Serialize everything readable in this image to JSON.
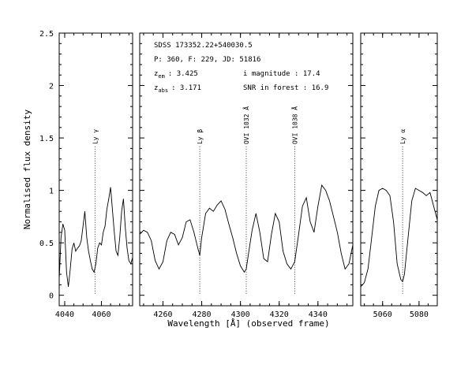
{
  "chart_data": {
    "type": "line",
    "xlabel": "Wavelength [Å] (observed frame)",
    "ylabel": "Normalised flux density",
    "ylim": [
      -0.1,
      2.5
    ],
    "y_ticks": [
      "0",
      "0.5",
      "1",
      "1.5",
      "2",
      "2.5"
    ],
    "annotations": {
      "object": "SDSS 173352.22+540030.5",
      "plate": "P: 360, F: 229, JD: 51816",
      "zem_main": "z",
      "zem_sub": "em",
      "zem_value": ": 3.425",
      "zabs_main": "z",
      "zabs_sub": "abs",
      "zabs_value": ": 3.171",
      "imag": "i magnitude : 17.4",
      "snr": "SNR in forest : 16.9"
    },
    "panels": [
      {
        "xlim": [
          4037,
          4077
        ],
        "x_ticks": [
          "4040",
          "4060"
        ],
        "line_label": "Ly γ",
        "line_wavelength": 4056.5,
        "series": [
          {
            "x": [
              4037,
              4038,
              4039,
              4040,
              4041,
              4042,
              4043,
              4044,
              4045,
              4046,
              4047,
              4048,
              4049,
              4050,
              4051,
              4052,
              4053,
              4054,
              4055,
              4056,
              4057,
              4058,
              4059,
              4060,
              4061,
              4062,
              4063,
              4064,
              4065,
              4066,
              4067,
              4068,
              4069,
              4070,
              4071,
              4072,
              4073,
              4074,
              4075,
              4076,
              4077
            ],
            "y": [
              0.15,
              0.55,
              0.68,
              0.62,
              0.22,
              0.08,
              0.25,
              0.44,
              0.5,
              0.42,
              0.45,
              0.47,
              0.52,
              0.66,
              0.8,
              0.55,
              0.42,
              0.33,
              0.25,
              0.22,
              0.3,
              0.45,
              0.5,
              0.48,
              0.6,
              0.66,
              0.82,
              0.92,
              1.03,
              0.82,
              0.6,
              0.42,
              0.38,
              0.55,
              0.8,
              0.92,
              0.65,
              0.45,
              0.33,
              0.3,
              0.36
            ]
          }
        ]
      },
      {
        "xlim": [
          4248,
          4358
        ],
        "x_ticks": [
          "4260",
          "4280",
          "4300",
          "4320",
          "4340"
        ],
        "lines": [
          {
            "label": "Ly β",
            "x": 4279
          },
          {
            "label": "OVI 1032 Å",
            "x": 4303
          },
          {
            "label": "OVI 1038 Å",
            "x": 4328
          }
        ],
        "series": [
          {
            "x": [
              4248,
              4250,
              4252,
              4254,
              4256,
              4258,
              4260,
              4262,
              4264,
              4266,
              4268,
              4270,
              4272,
              4274,
              4276,
              4278,
              4279,
              4280,
              4282,
              4284,
              4286,
              4288,
              4290,
              4292,
              4294,
              4296,
              4298,
              4300,
              4302,
              4303,
              4304,
              4306,
              4308,
              4310,
              4312,
              4314,
              4316,
              4318,
              4320,
              4322,
              4324,
              4326,
              4328,
              4330,
              4332,
              4334,
              4336,
              4338,
              4340,
              4342,
              4344,
              4346,
              4348,
              4350,
              4352,
              4354,
              4356,
              4358
            ],
            "y": [
              0.58,
              0.62,
              0.6,
              0.52,
              0.33,
              0.25,
              0.32,
              0.52,
              0.6,
              0.58,
              0.48,
              0.55,
              0.7,
              0.72,
              0.6,
              0.45,
              0.38,
              0.55,
              0.78,
              0.83,
              0.8,
              0.86,
              0.9,
              0.82,
              0.68,
              0.55,
              0.4,
              0.28,
              0.22,
              0.25,
              0.38,
              0.62,
              0.78,
              0.6,
              0.35,
              0.32,
              0.58,
              0.78,
              0.7,
              0.42,
              0.3,
              0.25,
              0.32,
              0.58,
              0.85,
              0.93,
              0.7,
              0.6,
              0.85,
              1.05,
              1.0,
              0.9,
              0.75,
              0.6,
              0.4,
              0.25,
              0.3,
              0.48
            ]
          }
        ]
      },
      {
        "xlim": [
          5048,
          5090
        ],
        "x_ticks": [
          "5060",
          "5080"
        ],
        "line_label": "Ly α",
        "line_wavelength": 5071,
        "series": [
          {
            "x": [
              5048,
              5050,
              5052,
              5054,
              5056,
              5058,
              5060,
              5062,
              5064,
              5066,
              5068,
              5070,
              5071,
              5072,
              5074,
              5076,
              5078,
              5080,
              5082,
              5084,
              5086,
              5088,
              5090
            ],
            "y": [
              0.08,
              0.12,
              0.25,
              0.55,
              0.85,
              1.0,
              1.02,
              1.0,
              0.95,
              0.7,
              0.3,
              0.15,
              0.13,
              0.2,
              0.55,
              0.9,
              1.02,
              1.0,
              0.98,
              0.95,
              0.98,
              0.85,
              0.72
            ]
          }
        ]
      }
    ]
  }
}
